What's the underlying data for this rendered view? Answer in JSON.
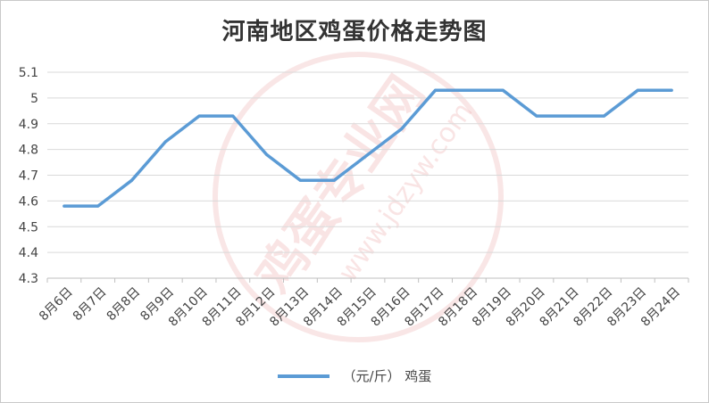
{
  "chart_data": {
    "type": "line",
    "title": "河南地区鸡蛋价格走势图",
    "categories": [
      "8月6日",
      "8月7日",
      "8月8日",
      "8月9日",
      "8月10日",
      "8月11日",
      "8月12日",
      "8月13日",
      "8月14日",
      "8月15日",
      "8月16日",
      "8月17日",
      "8月18日",
      "8月19日",
      "8月20日",
      "8月21日",
      "8月22日",
      "8月23日",
      "8月24日"
    ],
    "series": [
      {
        "name": "（元/斤） 鸡蛋",
        "color": "#5b9bd5",
        "values": [
          4.58,
          4.58,
          4.68,
          4.83,
          4.93,
          4.93,
          4.78,
          4.68,
          4.68,
          4.78,
          4.88,
          5.03,
          5.03,
          5.03,
          4.93,
          4.93,
          4.93,
          5.03,
          5.03
        ]
      }
    ],
    "ylim": [
      4.3,
      5.1
    ],
    "yticks": [
      "4.3",
      "4.4",
      "4.5",
      "4.6",
      "4.7",
      "4.8",
      "4.9",
      "5",
      "5.1"
    ],
    "grid": true,
    "legend_position": "bottom"
  },
  "watermark": {
    "text1": "鸡蛋专业网",
    "text2": "www.jdzyw.com",
    "color": "#e07070"
  }
}
